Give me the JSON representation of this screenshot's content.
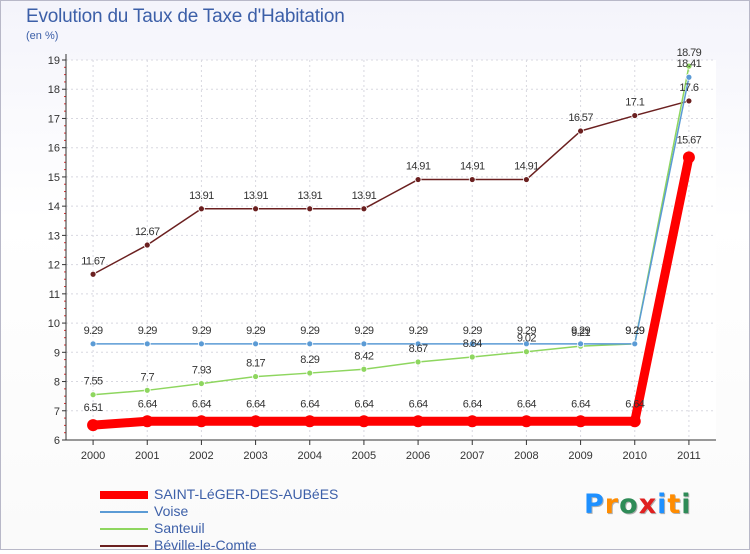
{
  "header": {
    "title": "Evolution du Taux de Taxe d'Habitation",
    "unit": "(en %)"
  },
  "logo": {
    "text": "Proxiti"
  },
  "chart_data": {
    "type": "line",
    "title": "Evolution du Taux de Taxe d'Habitation",
    "ylabel": "(en %)",
    "xlabel": "",
    "x": [
      "2000",
      "2001",
      "2002",
      "2003",
      "2004",
      "2005",
      "2006",
      "2007",
      "2008",
      "2009",
      "2010",
      "2011"
    ],
    "ylim": [
      6,
      19
    ],
    "yticks": [
      "6",
      "7",
      "8",
      "9",
      "10",
      "11",
      "12",
      "13",
      "14",
      "15",
      "16",
      "17",
      "18",
      "19"
    ],
    "grid": true,
    "legend_position": "bottom-left",
    "series": [
      {
        "name": "SAINT-LéGER-DES-AUBéES",
        "color": "#ff0000",
        "values": [
          6.51,
          6.64,
          6.64,
          6.64,
          6.64,
          6.64,
          6.64,
          6.64,
          6.64,
          6.64,
          6.64,
          15.67
        ],
        "labels": [
          "6.51",
          "6.64",
          "6.64",
          "6.64",
          "6.64",
          "6.64",
          "6.64",
          "6.64",
          "6.64",
          "6.64",
          "6.64",
          "15.67"
        ]
      },
      {
        "name": "Voise",
        "color": "#5b9bd5",
        "values": [
          9.29,
          9.29,
          9.29,
          9.29,
          9.29,
          9.29,
          9.29,
          9.29,
          9.29,
          9.29,
          9.29,
          18.41
        ],
        "labels": [
          "9.29",
          "9.29",
          "9.29",
          "9.29",
          "9.29",
          "9.29",
          "9.29",
          "9.29",
          "9.29",
          "9.29",
          "9.29",
          "18.41"
        ]
      },
      {
        "name": "Santeuil",
        "color": "#8ed65f",
        "values": [
          7.55,
          7.7,
          7.93,
          8.17,
          8.29,
          8.42,
          8.67,
          8.84,
          9.02,
          9.21,
          9.29,
          18.79
        ],
        "labels": [
          "7.55",
          "7.7",
          "7.93",
          "8.17",
          "8.29",
          "8.42",
          "8.67",
          "8.84",
          "9.02",
          "9.21",
          "9.29",
          "18.79"
        ]
      },
      {
        "name": "Béville-le-Comte",
        "color": "#6b2020",
        "values": [
          11.67,
          12.67,
          13.91,
          13.91,
          13.91,
          13.91,
          14.91,
          14.91,
          14.91,
          16.57,
          17.1,
          17.6
        ],
        "labels": [
          "11.67",
          "12.67",
          "13.91",
          "13.91",
          "13.91",
          "13.91",
          "14.91",
          "14.91",
          "14.91",
          "16.57",
          "17.1",
          "17.6"
        ]
      }
    ]
  }
}
